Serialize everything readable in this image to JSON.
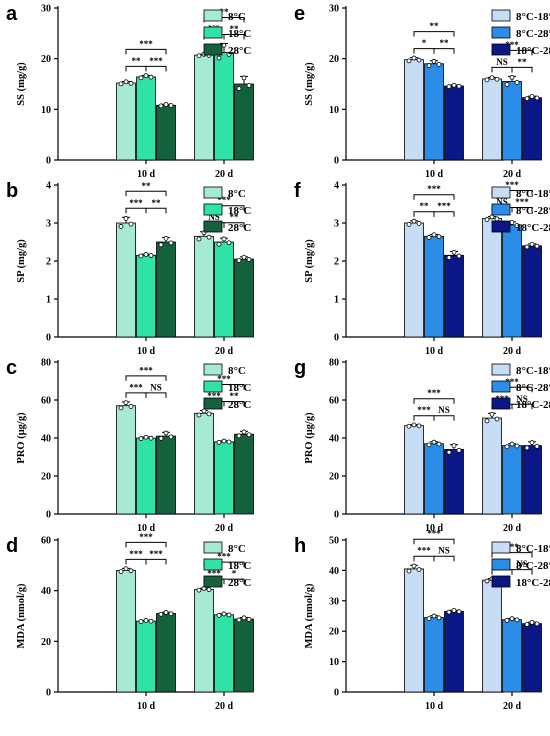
{
  "colors": {
    "left": [
      "#a6ead6",
      "#2fe3a7",
      "#14623c"
    ],
    "right": [
      "#c6ddf5",
      "#2a8de8",
      "#0c1787"
    ]
  },
  "chart_data": [
    {
      "panel": "a",
      "type": "bar",
      "ylabel": "SS (mg/g)",
      "ylim": [
        0,
        30
      ],
      "yticks": [
        0,
        10,
        20,
        30
      ],
      "categories": [
        "10 d",
        "20 d"
      ],
      "legend_side": "left",
      "series": [
        {
          "name": "8°C",
          "values": [
            15.2,
            20.7
          ],
          "errors": [
            0.3,
            0.2
          ]
        },
        {
          "name": "18°C",
          "values": [
            16.4,
            21.2
          ],
          "errors": [
            0.3,
            1.8
          ]
        },
        {
          "name": "28°C",
          "values": [
            10.8,
            15.0
          ],
          "errors": [
            0.2,
            1.5
          ]
        }
      ],
      "sig": [
        {
          "cat": 0,
          "a": 0,
          "b": 1,
          "label": "**",
          "level": 0
        },
        {
          "cat": 0,
          "a": 1,
          "b": 2,
          "label": "***",
          "level": 0
        },
        {
          "cat": 0,
          "a": 0,
          "b": 2,
          "label": "***",
          "level": 1
        },
        {
          "cat": 1,
          "a": 0,
          "b": 1,
          "label": "NS",
          "level": 0
        },
        {
          "cat": 1,
          "a": 1,
          "b": 2,
          "label": "**",
          "level": 0
        },
        {
          "cat": 1,
          "a": 0,
          "b": 2,
          "label": "**",
          "level": 1
        }
      ]
    },
    {
      "panel": "e",
      "type": "bar",
      "ylabel": "SS (mg/g)",
      "ylim": [
        0,
        30
      ],
      "yticks": [
        0,
        10,
        20,
        30
      ],
      "categories": [
        "10 d",
        "20 d"
      ],
      "legend_side": "right",
      "series": [
        {
          "name": "8°C-18°C",
          "values": [
            19.8,
            16.0
          ],
          "errors": [
            0.4,
            0.3
          ]
        },
        {
          "name": "8°C-28°C",
          "values": [
            19.0,
            15.5
          ],
          "errors": [
            0.6,
            1.0
          ]
        },
        {
          "name": "18°C-28°C",
          "values": [
            14.6,
            12.3
          ],
          "errors": [
            0.2,
            0.3
          ]
        }
      ],
      "sig": [
        {
          "cat": 0,
          "a": 0,
          "b": 1,
          "label": "*",
          "level": 0
        },
        {
          "cat": 0,
          "a": 1,
          "b": 2,
          "label": "**",
          "level": 0
        },
        {
          "cat": 0,
          "a": 0,
          "b": 2,
          "label": "**",
          "level": 1
        },
        {
          "cat": 1,
          "a": 0,
          "b": 1,
          "label": "NS",
          "level": 0
        },
        {
          "cat": 1,
          "a": 1,
          "b": 2,
          "label": "**",
          "level": 0
        },
        {
          "cat": 1,
          "a": 0,
          "b": 2,
          "label": "***",
          "level": 1
        }
      ]
    },
    {
      "panel": "b",
      "type": "bar",
      "ylabel": "SP (mg/g)",
      "ylim": [
        0,
        4
      ],
      "yticks": [
        0,
        1,
        2,
        3,
        4
      ],
      "categories": [
        "10 d",
        "20 d"
      ],
      "legend_side": "left",
      "series": [
        {
          "name": "8°C",
          "values": [
            3.0,
            2.65
          ],
          "errors": [
            0.15,
            0.12
          ]
        },
        {
          "name": "18°C",
          "values": [
            2.15,
            2.5
          ],
          "errors": [
            0.03,
            0.1
          ]
        },
        {
          "name": "28°C",
          "values": [
            2.5,
            2.05
          ],
          "errors": [
            0.12,
            0.06
          ]
        }
      ],
      "sig": [
        {
          "cat": 0,
          "a": 0,
          "b": 1,
          "label": "***",
          "level": 0
        },
        {
          "cat": 0,
          "a": 1,
          "b": 2,
          "label": "**",
          "level": 0
        },
        {
          "cat": 0,
          "a": 0,
          "b": 2,
          "label": "**",
          "level": 1
        },
        {
          "cat": 1,
          "a": 0,
          "b": 1,
          "label": "NS",
          "level": 0
        },
        {
          "cat": 1,
          "a": 1,
          "b": 2,
          "label": "**",
          "level": 0
        },
        {
          "cat": 1,
          "a": 0,
          "b": 2,
          "label": "***",
          "level": 1
        }
      ]
    },
    {
      "panel": "f",
      "type": "bar",
      "ylabel": "SP (mg/g)",
      "ylim": [
        0,
        4
      ],
      "yticks": [
        0,
        1,
        2,
        3,
        4
      ],
      "categories": [
        "10 d",
        "20 d"
      ],
      "legend_side": "right",
      "series": [
        {
          "name": "8°C-18°C",
          "values": [
            3.0,
            3.12
          ],
          "errors": [
            0.06,
            0.05
          ]
        },
        {
          "name": "8°C-28°C",
          "values": [
            2.65,
            2.95
          ],
          "errors": [
            0.05,
            0.08
          ]
        },
        {
          "name": "18°C-28°C",
          "values": [
            2.15,
            2.4
          ],
          "errors": [
            0.1,
            0.05
          ]
        }
      ],
      "sig": [
        {
          "cat": 0,
          "a": 0,
          "b": 1,
          "label": "**",
          "level": 0
        },
        {
          "cat": 0,
          "a": 1,
          "b": 2,
          "label": "***",
          "level": 0
        },
        {
          "cat": 0,
          "a": 0,
          "b": 2,
          "label": "***",
          "level": 1
        },
        {
          "cat": 1,
          "a": 0,
          "b": 1,
          "label": "NS",
          "level": 0
        },
        {
          "cat": 1,
          "a": 1,
          "b": 2,
          "label": "***",
          "level": 0
        },
        {
          "cat": 1,
          "a": 0,
          "b": 2,
          "label": "***",
          "level": 1
        }
      ]
    },
    {
      "panel": "c",
      "type": "bar",
      "ylabel": "PRO (μg/g)",
      "ylim": [
        0,
        80
      ],
      "yticks": [
        0,
        20,
        40,
        60,
        80
      ],
      "categories": [
        "10 d",
        "20 d"
      ],
      "legend_side": "left",
      "series": [
        {
          "name": "8°C",
          "values": [
            57,
            53
          ],
          "errors": [
            2,
            1.5
          ]
        },
        {
          "name": "18°C",
          "values": [
            40,
            38
          ],
          "errors": [
            0.5,
            0.5
          ]
        },
        {
          "name": "28°C",
          "values": [
            41,
            42
          ],
          "errors": [
            2,
            1.5
          ]
        }
      ],
      "sig": [
        {
          "cat": 0,
          "a": 0,
          "b": 1,
          "label": "***",
          "level": 0
        },
        {
          "cat": 0,
          "a": 1,
          "b": 2,
          "label": "NS",
          "level": 0
        },
        {
          "cat": 0,
          "a": 0,
          "b": 2,
          "label": "***",
          "level": 1
        },
        {
          "cat": 1,
          "a": 0,
          "b": 1,
          "label": "***",
          "level": 0
        },
        {
          "cat": 1,
          "a": 1,
          "b": 2,
          "label": "**",
          "level": 0
        },
        {
          "cat": 1,
          "a": 0,
          "b": 2,
          "label": "***",
          "level": 1
        }
      ]
    },
    {
      "panel": "g",
      "type": "bar",
      "ylabel": "PRO (μg/g)",
      "ylim": [
        0,
        80
      ],
      "yticks": [
        0,
        20,
        40,
        60,
        80
      ],
      "categories": [
        "10 d",
        "20 d"
      ],
      "legend_side": "right",
      "series": [
        {
          "name": "8°C-18°C",
          "values": [
            46.5,
            50.5
          ],
          "errors": [
            0.5,
            2.5
          ]
        },
        {
          "name": "8°C-28°C",
          "values": [
            37,
            36
          ],
          "errors": [
            1,
            1
          ]
        },
        {
          "name": "18°C-28°C",
          "values": [
            34,
            36
          ],
          "errors": [
            2.5,
            2
          ]
        }
      ],
      "sig": [
        {
          "cat": 0,
          "a": 0,
          "b": 1,
          "label": "***",
          "level": 0
        },
        {
          "cat": 0,
          "a": 1,
          "b": 2,
          "label": "NS",
          "level": 0
        },
        {
          "cat": 0,
          "a": 0,
          "b": 2,
          "label": "***",
          "level": 1
        },
        {
          "cat": 1,
          "a": 0,
          "b": 1,
          "label": "***",
          "level": 0
        },
        {
          "cat": 1,
          "a": 1,
          "b": 2,
          "label": "NS",
          "level": 0
        },
        {
          "cat": 1,
          "a": 0,
          "b": 2,
          "label": "***",
          "level": 1
        }
      ]
    },
    {
      "panel": "d",
      "type": "bar",
      "ylabel": "MDA (nmol/g)",
      "ylim": [
        0,
        60
      ],
      "yticks": [
        0,
        20,
        40,
        60
      ],
      "categories": [
        "10 d",
        "20 d"
      ],
      "legend_side": "left",
      "series": [
        {
          "name": "8°C",
          "values": [
            48,
            40.5
          ],
          "errors": [
            0.8,
            0.5
          ]
        },
        {
          "name": "18°C",
          "values": [
            28,
            30.5
          ],
          "errors": [
            0.3,
            0.4
          ]
        },
        {
          "name": "28°C",
          "values": [
            31,
            28.8
          ],
          "errors": [
            0.5,
            0.6
          ]
        }
      ],
      "sig": [
        {
          "cat": 0,
          "a": 0,
          "b": 1,
          "label": "***",
          "level": 0
        },
        {
          "cat": 0,
          "a": 1,
          "b": 2,
          "label": "***",
          "level": 0
        },
        {
          "cat": 0,
          "a": 0,
          "b": 2,
          "label": "***",
          "level": 1
        },
        {
          "cat": 1,
          "a": 0,
          "b": 1,
          "label": "***",
          "level": 0
        },
        {
          "cat": 1,
          "a": 1,
          "b": 2,
          "label": "*",
          "level": 0
        },
        {
          "cat": 1,
          "a": 0,
          "b": 2,
          "label": "***",
          "level": 1
        }
      ]
    },
    {
      "panel": "h",
      "type": "bar",
      "ylabel": "MDA (nmol/g)",
      "ylim": [
        0,
        50
      ],
      "yticks": [
        0,
        10,
        20,
        30,
        40,
        50
      ],
      "categories": [
        "10 d",
        "20 d"
      ],
      "legend_side": "right",
      "series": [
        {
          "name": "8°C-18°C",
          "values": [
            40.5,
            36.8
          ],
          "errors": [
            1.2,
            0.5
          ]
        },
        {
          "name": "8°C-28°C",
          "values": [
            24.5,
            23.8
          ],
          "errors": [
            0.6,
            0.4
          ]
        },
        {
          "name": "18°C-28°C",
          "values": [
            26.5,
            22.5
          ],
          "errors": [
            0.4,
            0.5
          ]
        }
      ],
      "sig": [
        {
          "cat": 0,
          "a": 0,
          "b": 1,
          "label": "***",
          "level": 0
        },
        {
          "cat": 0,
          "a": 1,
          "b": 2,
          "label": "NS",
          "level": 0
        },
        {
          "cat": 0,
          "a": 0,
          "b": 2,
          "label": "***",
          "level": 1
        },
        {
          "cat": 1,
          "a": 0,
          "b": 1,
          "label": "***",
          "level": 0
        },
        {
          "cat": 1,
          "a": 1,
          "b": 2,
          "label": "NS",
          "level": 0
        },
        {
          "cat": 1,
          "a": 0,
          "b": 2,
          "label": "***",
          "level": 1
        }
      ]
    }
  ]
}
